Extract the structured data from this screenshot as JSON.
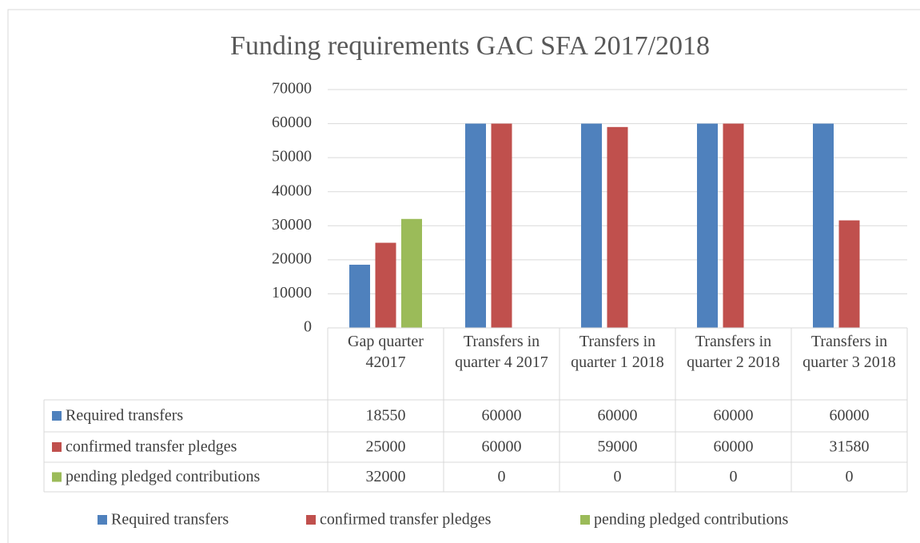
{
  "chart_data": {
    "type": "bar",
    "title": "Funding requirements GAC SFA 2017/2018",
    "categories": [
      "Gap quarter 42017",
      "Transfers in quarter 4 2017",
      "Transfers in quarter 1 2018",
      "Transfers in quarter 2 2018",
      "Transfers in quarter 3 2018"
    ],
    "series": [
      {
        "name": "Required transfers",
        "color": "#4f81bd",
        "values": [
          18550,
          60000,
          60000,
          60000,
          60000
        ]
      },
      {
        "name": "confirmed transfer pledges",
        "color": "#c0504d",
        "values": [
          25000,
          60000,
          59000,
          60000,
          31580
        ]
      },
      {
        "name": "pending pledged contributions",
        "color": "#9bbb59",
        "values": [
          32000,
          0,
          0,
          0,
          0
        ]
      }
    ],
    "ylim": [
      0,
      70000
    ],
    "yticks": [
      0,
      10000,
      20000,
      30000,
      40000,
      50000,
      60000,
      70000
    ],
    "grid": true,
    "data_table": true,
    "legend": "bottom"
  }
}
